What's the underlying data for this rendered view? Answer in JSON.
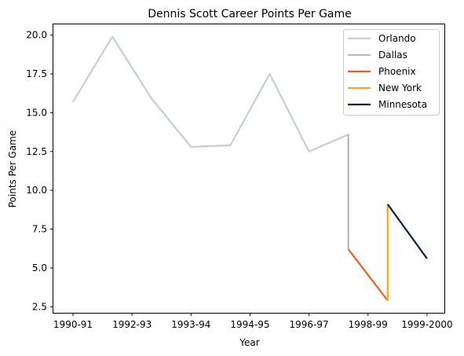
{
  "chart_data": {
    "type": "line",
    "title": "Dennis Scott  Career Points Per Game",
    "xlabel": "Year",
    "ylabel": "Points Per Game",
    "x_ticks": [
      "1990-91",
      "1992-93",
      "1993-94",
      "1994-95",
      "1996-97",
      "1998-99",
      "1999-2000"
    ],
    "y_ticks": [
      "2.5",
      "5.0",
      "7.5",
      "10.0",
      "12.5",
      "15.0",
      "17.5",
      "20.0"
    ],
    "ylim": [
      1.9,
      20.8
    ],
    "grid": false,
    "legend_position": "top-right",
    "series": [
      {
        "name": "Orlando",
        "color": "#c4ced4",
        "points": [
          [
            0,
            15.7
          ],
          [
            1,
            19.9
          ],
          [
            2,
            15.9
          ],
          [
            3,
            12.8
          ],
          [
            4,
            12.9
          ],
          [
            5,
            17.5
          ],
          [
            6,
            12.5
          ],
          [
            7,
            13.6
          ],
          [
            7,
            6.2
          ]
        ]
      },
      {
        "name": "Dallas",
        "color": "#bbbbbb",
        "points": [
          [
            7,
            13.6
          ],
          [
            7,
            6.2
          ]
        ]
      },
      {
        "name": "Phoenix",
        "color": "#e56020",
        "points": [
          [
            7,
            6.2
          ],
          [
            8,
            2.9
          ]
        ]
      },
      {
        "name": "New York",
        "color": "#f5a623",
        "points": [
          [
            8,
            2.9
          ],
          [
            8,
            9.1
          ]
        ]
      },
      {
        "name": "Minnesota",
        "color": "#0c2340",
        "points": [
          [
            8,
            9.1
          ],
          [
            9,
            5.6
          ]
        ]
      }
    ]
  }
}
